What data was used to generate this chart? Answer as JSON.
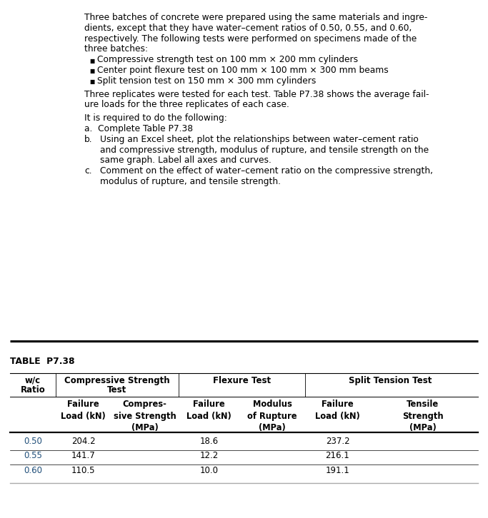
{
  "background_color": "#ffffff",
  "black": "#000000",
  "blue": "#1f4e79",
  "gray_line": "#888888",
  "paragraph_text": [
    "Three batches of concrete were prepared using the same materials and ingre-",
    "dients, except that they have water–cement ratios of 0.50, 0.55, and 0.60,",
    "respectively. The following tests were performed on specimens made of the",
    "three batches:"
  ],
  "bullets": [
    "Compressive strength test on 100 mm × 200 mm cylinders",
    "Center point flexure test on 100 mm × 100 mm × 300 mm beams",
    "Split tension test on 150 mm × 300 mm cylinders"
  ],
  "para2": [
    "Three replicates were tested for each test. Table P7.38 shows the average fail-",
    "ure loads for the three replicates of each case."
  ],
  "para3": "It is required to do the following:",
  "item_a": "a.  Complete Table P7.38",
  "item_b_label": "b.",
  "item_b_lines": [
    "Using an Excel sheet, plot the relationships between water–cement ratio",
    "and compressive strength, modulus of rupture, and tensile strength on the",
    "same graph. Label all axes and curves."
  ],
  "item_c_label": "c.",
  "item_c_lines": [
    "Comment on the effect of water–cement ratio on the compressive strength,",
    "modulus of rupture, and tensile strength."
  ],
  "table_title": "TABLE  P7.38",
  "col_group_headers": [
    "w/c\nRatio",
    "Compressive Strength\nTest",
    "Flexure Test",
    "Split Tension Test"
  ],
  "col_sub_headers": [
    "",
    "Failure\nLoad (kN)",
    "Compres-\nsive Strength\n(MPa)",
    "Failure\nLoad (kN)",
    "Modulus\nof Rupture\n(MPa)",
    "Failure\nLoad (kN)",
    "Tensile\nStrength\n(MPa)"
  ],
  "rows": [
    [
      "0.50",
      "204.2",
      "",
      "18.6",
      "",
      "237.2",
      ""
    ],
    [
      "0.55",
      "141.7",
      "",
      "12.2",
      "",
      "216.1",
      ""
    ],
    [
      "0.60",
      "110.5",
      "",
      "10.0",
      "",
      "191.1",
      ""
    ]
  ],
  "fs_body": 8.8,
  "fs_table_header": 8.5,
  "fs_table_data": 8.5,
  "fs_table_title": 8.8
}
